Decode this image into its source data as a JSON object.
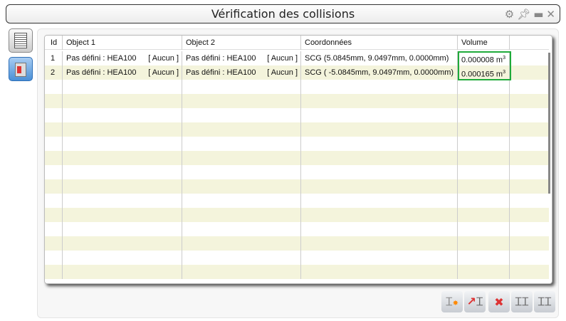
{
  "window": {
    "title": "Vérification des collisions",
    "icons": [
      "gear-icon",
      "pin-icon",
      "minimize-icon",
      "close-icon"
    ]
  },
  "sidebar": [
    "report-icon",
    "collision-beam-icon"
  ],
  "table": {
    "headers": [
      "Id",
      "Object 1",
      "Object 2",
      "Coordonnées",
      "Volume"
    ],
    "rows": [
      {
        "id": "1",
        "object1": "Pas défini : HEA100",
        "tag1": "[ Aucun ]",
        "object2": "Pas défini : HEA100",
        "tag2": "[ Aucun ]",
        "coords": "SCG (5.0845mm, 9.0497mm, 0.0000mm)",
        "volume": "0.000008 m",
        "unit_exp": "3"
      },
      {
        "id": "2",
        "object1": "Pas défini : HEA100",
        "tag1": "[ Aucun ]",
        "object2": "Pas défini : HEA100",
        "tag2": "[ Aucun ]",
        "coords": "SCG ( -5.0845mm, 9.0497mm, 0.0000mm)",
        "volume": "0.000165 m",
        "unit_exp": "3"
      }
    ],
    "highlight_color": "#1faa3a"
  },
  "toolbar": [
    "add-beam-icon",
    "move-beam-icon",
    "delete-collision-icon",
    "beam-pair-icon",
    "beam-pair-alt-icon"
  ]
}
